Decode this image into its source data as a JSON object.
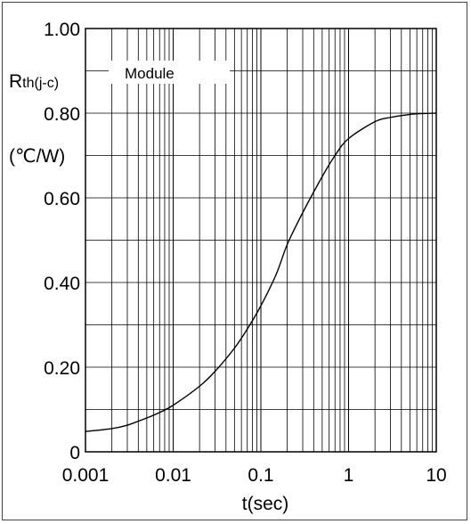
{
  "chart_data": {
    "type": "line",
    "title": "",
    "legend": "Module",
    "xlabel": "t(sec)",
    "ylabel_line1_main": "R",
    "ylabel_line1_sub": "th(j-c)",
    "ylabel_line2": "(℃/W)",
    "x_scale": "log",
    "xlim": [
      0.001,
      10
    ],
    "ylim": [
      0,
      1.0
    ],
    "grid": true,
    "x_ticks": [
      0.001,
      0.01,
      0.1,
      1,
      10
    ],
    "x_tick_labels": [
      "0.001",
      "0.01",
      "0.1",
      "1",
      "10"
    ],
    "y_ticks": [
      0,
      0.2,
      0.4,
      0.6,
      0.8,
      1.0
    ],
    "y_tick_labels": [
      "0",
      "0.20",
      "0.40",
      "0.60",
      "0.80",
      "1.00"
    ],
    "series": [
      {
        "x": [
          0.001,
          0.002,
          0.003,
          0.005,
          0.007,
          0.01,
          0.02,
          0.03,
          0.05,
          0.07,
          0.1,
          0.15,
          0.2,
          0.3,
          0.5,
          0.7,
          1,
          2,
          3,
          5,
          7,
          10
        ],
        "y": [
          0.048,
          0.055,
          0.063,
          0.08,
          0.093,
          0.11,
          0.155,
          0.19,
          0.245,
          0.29,
          0.345,
          0.42,
          0.49,
          0.565,
          0.65,
          0.7,
          0.74,
          0.78,
          0.79,
          0.797,
          0.799,
          0.8
        ]
      }
    ]
  }
}
